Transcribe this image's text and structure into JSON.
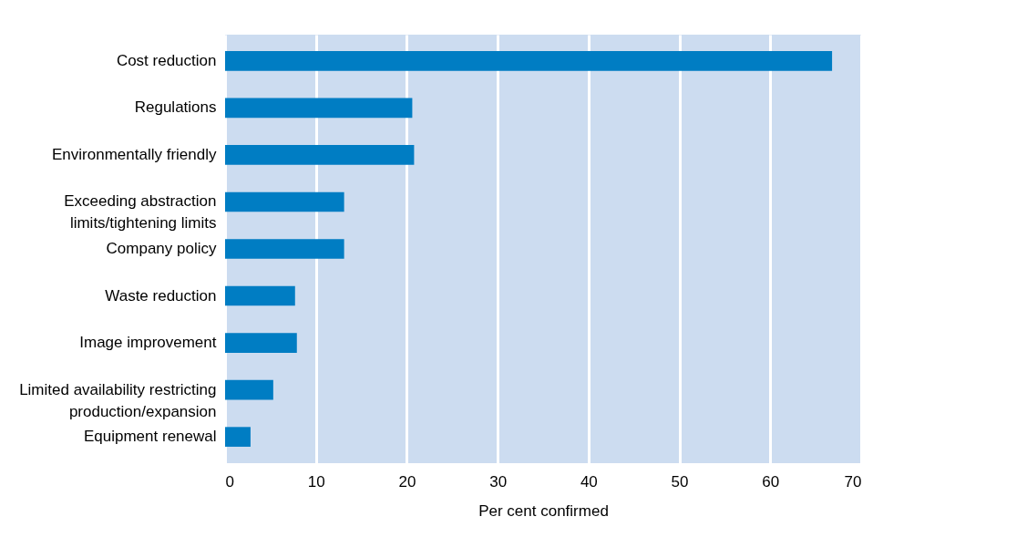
{
  "chart_data": {
    "type": "bar",
    "orientation": "horizontal",
    "xlabel": "Per cent confirmed",
    "categories": [
      "Cost reduction",
      "Regulations",
      "Environmentally friendly",
      "Exceeding abstraction\nlimits/tightening limits",
      "Company policy",
      "Waste reduction",
      "Image improvement",
      "Limited availability restricting\nproduction/expansion",
      "Equipment renewal"
    ],
    "values": [
      66.8,
      20.6,
      20.8,
      13.1,
      13.1,
      7.7,
      7.9,
      5.3,
      2.8
    ],
    "color": "#007dc3",
    "xlim": [
      0,
      70
    ],
    "xticks": [
      0,
      10,
      20,
      30,
      40,
      50,
      60,
      70
    ],
    "grid": "x"
  }
}
